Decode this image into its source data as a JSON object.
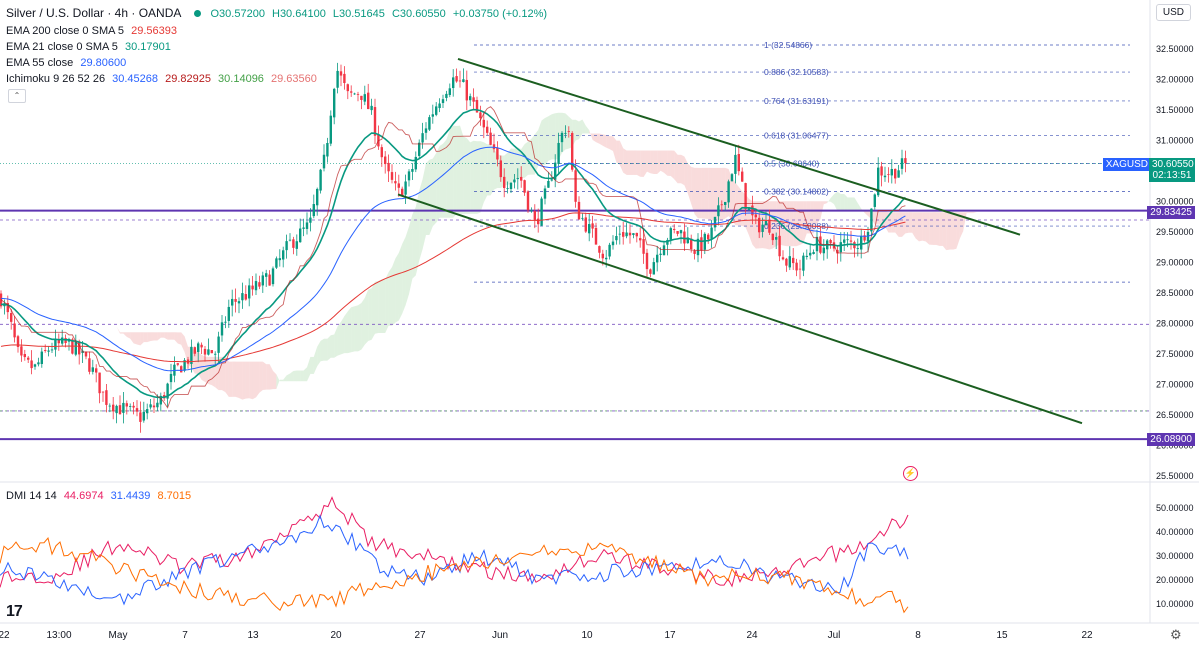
{
  "header": {
    "symbol": "Silver / U.S. Dollar · 4h · OANDA",
    "ohlc_o": "O30.57200",
    "ohlc_h": "H30.64100",
    "ohlc_l": "L30.51645",
    "ohlc_c": "C30.60550",
    "change": "+0.03750 (+0.12%)"
  },
  "indicators": [
    {
      "label": "EMA 200 close 0 SMA 5",
      "values": [
        "29.56393"
      ],
      "colors": [
        "#e53935"
      ]
    },
    {
      "label": "EMA 21 close 0 SMA 5",
      "values": [
        "30.17901"
      ],
      "colors": [
        "#089981"
      ]
    },
    {
      "label": "EMA 55 close",
      "values": [
        "29.80600"
      ],
      "colors": [
        "#2962ff"
      ]
    },
    {
      "label": "Ichimoku 9 26 52 26",
      "values": [
        "30.45268",
        "29.82925",
        "30.14096",
        "29.63560"
      ],
      "colors": [
        "#2962ff",
        "#b71c1c",
        "#43a047",
        "#e57373"
      ]
    }
  ],
  "currency": "USD",
  "price_axis": {
    "ticks": [
      "32.50000",
      "32.00000",
      "31.50000",
      "31.00000",
      "30.50000",
      "30.00000",
      "29.50000",
      "29.00000",
      "28.50000",
      "28.00000",
      "27.50000",
      "27.00000",
      "26.50000",
      "26.00000",
      "25.50000"
    ],
    "symbol_badge": "XAGUSD",
    "last_price": "30.60550",
    "countdown": "02:13:51",
    "level_badge_1": "29.83425",
    "level_badge_2": "26.08900"
  },
  "fib_levels": [
    {
      "ratio": "1",
      "label": "1 (32.54866)",
      "price": 32.54866
    },
    {
      "ratio": "0.886",
      "label": "0.886 (32.10583)",
      "price": 32.10583
    },
    {
      "ratio": "0.764",
      "label": "0.764 (31.63191)",
      "price": 31.63191
    },
    {
      "ratio": "0.618",
      "label": "0.618 (31.06477)",
      "price": 31.06477
    },
    {
      "ratio": "0.5",
      "label": "0.5 (30.60640)",
      "price": 30.6064
    },
    {
      "ratio": "0.382",
      "label": "0.382 (30.14802)",
      "price": 30.14802
    },
    {
      "ratio": "0.236",
      "label": "0.236 (29.58088)",
      "price": 29.58088
    },
    {
      "ratio": "0",
      "label": "",
      "price": 28.662
    }
  ],
  "dmi": {
    "label": "DMI 14 14",
    "values": [
      "44.6974",
      "31.4439",
      "8.7015"
    ],
    "colors": [
      "#e91e63",
      "#2962ff",
      "#ff6d00"
    ],
    "ticks": [
      "50.00000",
      "40.00000",
      "30.00000",
      "20.00000",
      "10.00000"
    ]
  },
  "time_axis": [
    "22",
    "13:00",
    "May",
    "7",
    "13",
    "20",
    "27",
    "Jun",
    "10",
    "17",
    "24",
    "Jul",
    "8",
    "15",
    "22"
  ],
  "colors": {
    "up": "#089981",
    "down": "#f23645",
    "channel": "#1b5e20",
    "horizontal_line": "#5e35b1",
    "fib_line": "#3f51b5",
    "ema200": "#e53935",
    "ema21": "#089981",
    "ema55": "#2962ff"
  },
  "chart_data": {
    "type": "candlestick",
    "title": "Silver / U.S. Dollar · 4h · OANDA",
    "ylim": [
      25.3,
      32.75
    ],
    "x_categories": [
      "22",
      "13:00",
      "May",
      "7",
      "13",
      "20",
      "27",
      "Jun",
      "10",
      "17",
      "24",
      "Jul",
      "8",
      "15",
      "22"
    ],
    "key_series_points": {
      "price_path": [
        {
          "x": "22",
          "y": 28.3
        },
        {
          "x": "13:00",
          "y": 27.4
        },
        {
          "x": "May",
          "y": 26.8
        },
        {
          "x": "7",
          "y": 27.5
        },
        {
          "x": "13",
          "y": 28.5
        },
        {
          "x": "20",
          "y": 31.5
        },
        {
          "x": "27",
          "y": 31.0
        },
        {
          "x": "Jun",
          "y": 30.5
        },
        {
          "x": "10",
          "y": 29.5
        },
        {
          "x": "17",
          "y": 29.7
        },
        {
          "x": "24",
          "y": 29.3
        },
        {
          "x": "Jul",
          "y": 29.2
        },
        {
          "x": "last",
          "y": 30.6055
        }
      ]
    },
    "horizontal_levels": [
      29.83425,
      26.089
    ],
    "ema200_last": 29.56393,
    "ema21_last": 30.17901,
    "ema55_last": 29.806,
    "dmi_last": {
      "plus_di": 44.6974,
      "minus_di": 8.7015,
      "adx": 31.4439
    }
  }
}
